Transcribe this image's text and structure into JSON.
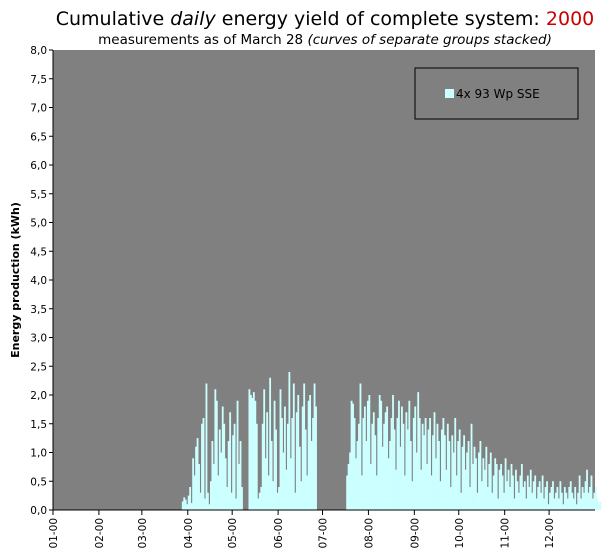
{
  "header": {
    "title_pre": "Cumulative ",
    "title_em": "daily",
    "title_mid": " energy yield of complete system: ",
    "title_year": "2000",
    "subtitle_pre": "measurements as of March 28 ",
    "subtitle_em": "(curves of separate groups stacked)"
  },
  "colors": {
    "plot_bg": "#808080",
    "bars": "#ccffff",
    "legend_bg": "#808080",
    "year": "#cc0000"
  },
  "chart_data": {
    "type": "bar",
    "title": "Cumulative daily energy yield of complete system: 2000",
    "subtitle": "measurements as of March 28 (curves of separate groups stacked)",
    "xlabel": "",
    "ylabel": "Energy production (kWh)",
    "ylim": [
      0,
      8
    ],
    "y_ticks": [
      "0,0",
      "0,5",
      "1,0",
      "1,5",
      "2,0",
      "2,5",
      "3,0",
      "3,5",
      "4,0",
      "4,5",
      "5,0",
      "5,5",
      "6,0",
      "6,5",
      "7,0",
      "7,5",
      "8,0"
    ],
    "x_ticks": [
      "01-00",
      "02-00",
      "03-00",
      "04-00",
      "05-00",
      "06-00",
      "07-00",
      "08-00",
      "09-00",
      "10-00",
      "11-00",
      "12-00"
    ],
    "grid": false,
    "legend": {
      "position": "top-right",
      "entries": [
        "4x 93 Wp SSE"
      ]
    },
    "series": [
      {
        "name": "4x 93 Wp SSE",
        "segments": [
          {
            "start": "03-28",
            "values": [
              0.15,
              0.22,
              0.18,
              0.1,
              0.25,
              0.4,
              0.12,
              0.9,
              0.6,
              1.1,
              1.25,
              0.8,
              0.3,
              1.5,
              1.6,
              0.2,
              2.2,
              0.3,
              0.1,
              0.5,
              1.2,
              0.8,
              2.1,
              1.9,
              0.6,
              1.4,
              1.0,
              1.8,
              1.5,
              0.9,
              0.4,
              1.2,
              1.7,
              0.3,
              1.3,
              1.5,
              0.2,
              1.9,
              0.8,
              1.2,
              0.4
            ]
          },
          {
            "start": "05-12",
            "values": [
              2.1,
              2.0,
              1.95,
              2.05,
              1.9,
              1.5,
              0.2,
              0.3,
              0.4,
              1.5,
              2.1,
              0.9,
              1.7,
              0.6,
              2.3,
              1.2,
              0.5,
              1.9,
              1.4,
              0.3,
              0.4,
              2.1,
              1.6,
              1.0,
              1.8,
              0.7,
              1.5,
              2.4,
              0.9,
              1.6,
              2.2,
              0.3,
              1.7,
              2.0,
              1.1,
              0.5,
              1.8,
              2.2,
              1.4,
              0.6,
              1.9,
              2.0,
              1.2,
              1.6,
              2.2,
              1.8
            ]
          },
          {
            "start": "07-17",
            "values": [
              0.6,
              0.8,
              1.0,
              1.9,
              1.85,
              1.6,
              0.9,
              1.2,
              1.5,
              2.2,
              0.6,
              1.6,
              1.8,
              1.2,
              1.9,
              2.0,
              0.8,
              1.5,
              1.7,
              1.3,
              0.6,
              1.6,
              2.0,
              1.9,
              1.1,
              1.5,
              1.7,
              1.8,
              0.9,
              1.2,
              1.6,
              2.0,
              1.4,
              0.7,
              1.6,
              1.9,
              1.1,
              1.8,
              1.5,
              0.6,
              1.7,
              1.4,
              1.9,
              1.2,
              0.5,
              1.6,
              1.8,
              1.0,
              2.05,
              1.6,
              0.7,
              1.5,
              1.3,
              1.6,
              0.8,
              1.4,
              1.6,
              0.6,
              1.3,
              1.7,
              0.9,
              1.5,
              1.2,
              0.5,
              1.4,
              1.6,
              1.3,
              0.7,
              1.5,
              1.2,
              0.4,
              1.3,
              1.0,
              1.6,
              0.6,
              1.2,
              1.4,
              0.3,
              1.1,
              1.3,
              0.7,
              1.0,
              1.2,
              0.4,
              1.5,
              0.8,
              1.1,
              0.9,
              0.3,
              1.0,
              1.2,
              0.5,
              0.9,
              0.7,
              1.1,
              0.4,
              0.8,
              1.0,
              0.3,
              0.6,
              0.9,
              0.8,
              0.2,
              0.7,
              0.8,
              0.6,
              0.3,
              0.9,
              0.5,
              0.7,
              0.4,
              0.8,
              0.6,
              0.2,
              0.7,
              0.5,
              0.3,
              0.6,
              0.8,
              0.4,
              0.5,
              0.2,
              0.6,
              0.4,
              0.7,
              0.3,
              0.5,
              0.6,
              0.2,
              0.4,
              0.5,
              0.3,
              0.6,
              0.2,
              0.4,
              0.5,
              0.1,
              0.3,
              0.4,
              0.5,
              0.2,
              0.3,
              0.4,
              0.2,
              0.5,
              0.3,
              0.1,
              0.4,
              0.3,
              0.2,
              0.4,
              0.5,
              0.3,
              0.2,
              0.4,
              0.1,
              0.3,
              0.6,
              0.2,
              0.4,
              0.3,
              0.5,
              0.7,
              0.3,
              0.4,
              0.6,
              0.2,
              0.3,
              0.4,
              0.2,
              0.1,
              0.15
            ]
          }
        ]
      }
    ]
  }
}
